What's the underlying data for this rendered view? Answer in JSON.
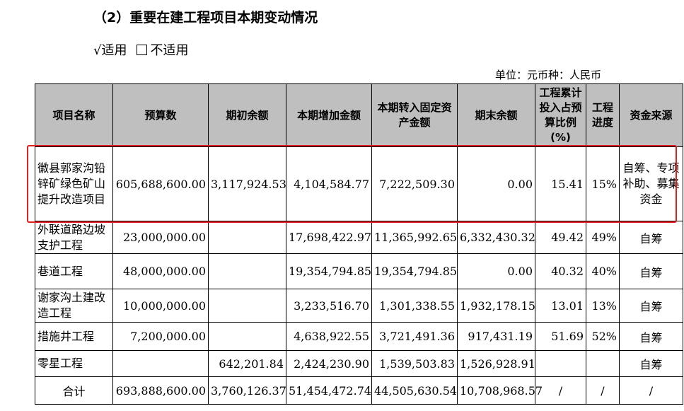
{
  "title": "（2）重要在建工程项目本期变动情况",
  "options": {
    "applicable_check": "√",
    "applicable": "适用",
    "not_applicable": "不适用"
  },
  "unit": "单位：元币种：人民币",
  "headers": [
    "项目名称",
    "预算数",
    "期初余额",
    "本期增加金额",
    "本期转入固定资产金额",
    "期末余额",
    "工程累计投入占预算比例(%)",
    "工程进度",
    "资金来源"
  ],
  "rows": [
    {
      "name": "徽县郭家沟铅锌矿绿色矿山提升改造项目",
      "budget": "605,688,600.00",
      "opening": "3,117,924.53",
      "increase": "4,104,584.77",
      "transfer": "7,222,509.30",
      "closing": "0.00",
      "ratio": "15.41",
      "progress": "15%",
      "source": "自筹、专项补助、募集资金"
    },
    {
      "name": "外联道路边坡支护工程",
      "budget": "23,000,000.00",
      "opening": "",
      "increase": "17,698,422.97",
      "transfer": "11,365,992.65",
      "closing": "6,332,430.32",
      "ratio": "49.42",
      "progress": "49%",
      "source": "自筹"
    },
    {
      "name": "巷道工程",
      "budget": "48,000,000.00",
      "opening": "",
      "increase": "19,354,794.85",
      "transfer": "19,354,794.85",
      "closing": "0.00",
      "ratio": "40.32",
      "progress": "40%",
      "source": "自筹"
    },
    {
      "name": "谢家沟土建改造工程",
      "budget": "10,000,000.00",
      "opening": "",
      "increase": "3,233,516.70",
      "transfer": "1,301,338.55",
      "closing": "1,932,178.15",
      "ratio": "13.01",
      "progress": "13%",
      "source": "自筹"
    },
    {
      "name": "措施井工程",
      "budget": "7,200,000.00",
      "opening": "",
      "increase": "4,638,922.55",
      "transfer": "3,721,491.36",
      "closing": "917,431.19",
      "ratio": "51.69",
      "progress": "52%",
      "source": "自筹"
    },
    {
      "name": "零星工程",
      "budget": "",
      "opening": "642,201.84",
      "increase": "2,424,230.90",
      "transfer": "1,539,503.83",
      "closing": "1,526,928.91",
      "ratio": "",
      "progress": "",
      "source": "自筹"
    },
    {
      "name": "合计",
      "budget": "693,888,600.00",
      "opening": "3,760,126.37",
      "increase": "51,454,472.74",
      "transfer": "44,505,630.54",
      "closing": "10,708,968.57",
      "ratio": "/",
      "progress": "/",
      "source": "/"
    }
  ],
  "colors": {
    "header_bg": "#bfbfbf",
    "highlight": "#e02020"
  }
}
